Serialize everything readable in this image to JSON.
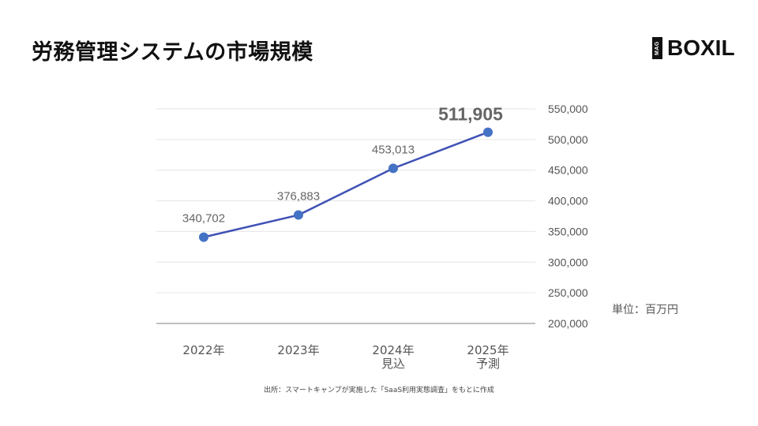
{
  "title": "労務管理システムの市場規模",
  "logo": {
    "badge": "MAG",
    "name": "BOXIL"
  },
  "unit_label": "単位：百万円",
  "source_note": "出所：スマートキャンプが実施した「SaaS利用実態調査」をもとに作成",
  "colors": {
    "line": "#3f51b5",
    "point": "#4472c4",
    "label": "#666666",
    "highlight_label": "#666666"
  },
  "chart_data": {
    "type": "line",
    "categories": [
      [
        "2022年"
      ],
      [
        "2023年"
      ],
      [
        "2024年",
        "見込"
      ],
      [
        "2025年",
        "予測"
      ]
    ],
    "values": [
      340702,
      376883,
      453013,
      511905
    ],
    "value_labels": [
      "340,702",
      "376,883",
      "453,013",
      "511,905"
    ],
    "highlight_index": 3,
    "ylim": [
      200000,
      550000
    ],
    "yticks": [
      200000,
      250000,
      300000,
      350000,
      400000,
      450000,
      500000,
      550000
    ],
    "ytick_labels": [
      "200,000",
      "250,000",
      "300,000",
      "350,000",
      "400,000",
      "450,000",
      "500,000",
      "550,000"
    ],
    "y_axis_side": "right",
    "grid": true
  }
}
